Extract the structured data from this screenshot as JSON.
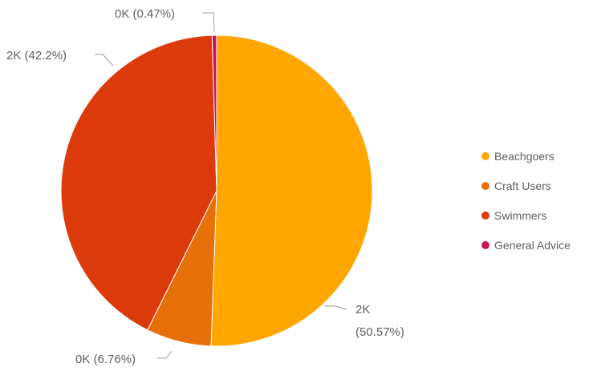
{
  "chart_data": {
    "type": "pie",
    "title": "",
    "slices": [
      {
        "name": "Beachgoers",
        "value_label": "2K",
        "percent": 50.57,
        "color": "#FFA600"
      },
      {
        "name": "Craft Users",
        "value_label": "0K",
        "percent": 6.76,
        "color": "#E8700A"
      },
      {
        "name": "Swimmers",
        "value_label": "2K",
        "percent": 42.2,
        "color": "#DC3A0B"
      },
      {
        "name": "General Advice",
        "value_label": "0K",
        "percent": 0.47,
        "color": "#C8155A"
      }
    ],
    "data_labels": [
      {
        "slice": 0,
        "line1": "2K",
        "line2": "(50.57%)"
      },
      {
        "slice": 1,
        "line1": "0K (6.76%)"
      },
      {
        "slice": 2,
        "line1": "2K (42.2%)"
      },
      {
        "slice": 3,
        "line1": "0K (0.47%)"
      }
    ],
    "legend": {
      "position": "right",
      "items": [
        "Beachgoers",
        "Craft Users",
        "Swimmers",
        "General Advice"
      ]
    }
  }
}
